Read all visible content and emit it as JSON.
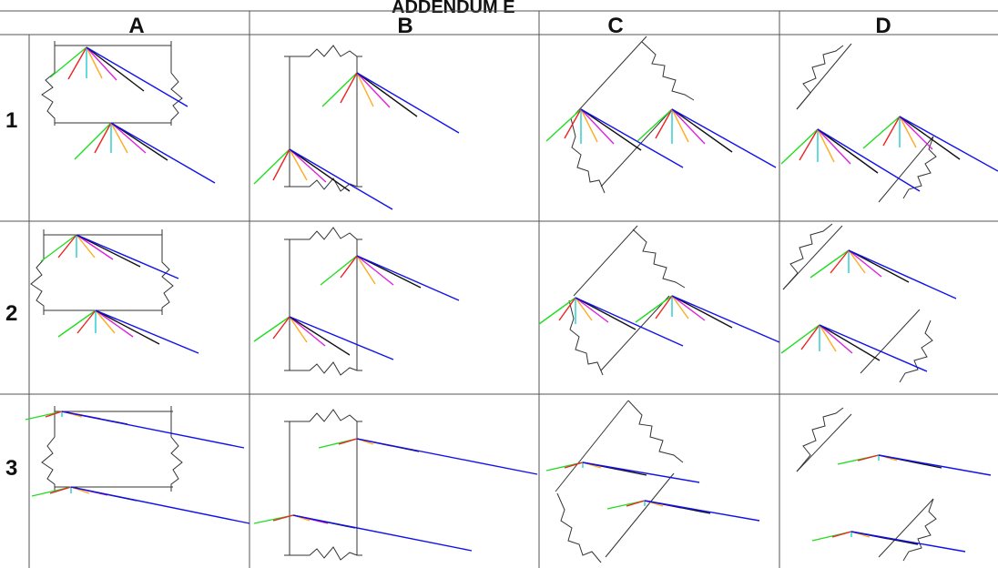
{
  "header": {
    "partial_title": "ADDENDUM E"
  },
  "columns": [
    "A",
    "B",
    "C",
    "D"
  ],
  "rows": [
    "1",
    "2",
    "3"
  ],
  "colors": {
    "green": "#22dd22",
    "red": "#ee2222",
    "cyan": "#22cccc",
    "orange": "#ffaa22",
    "magenta": "#dd22dd",
    "black": "#111111",
    "blue": "#1111ee",
    "wall": "#333333",
    "grid": "#555555"
  }
}
